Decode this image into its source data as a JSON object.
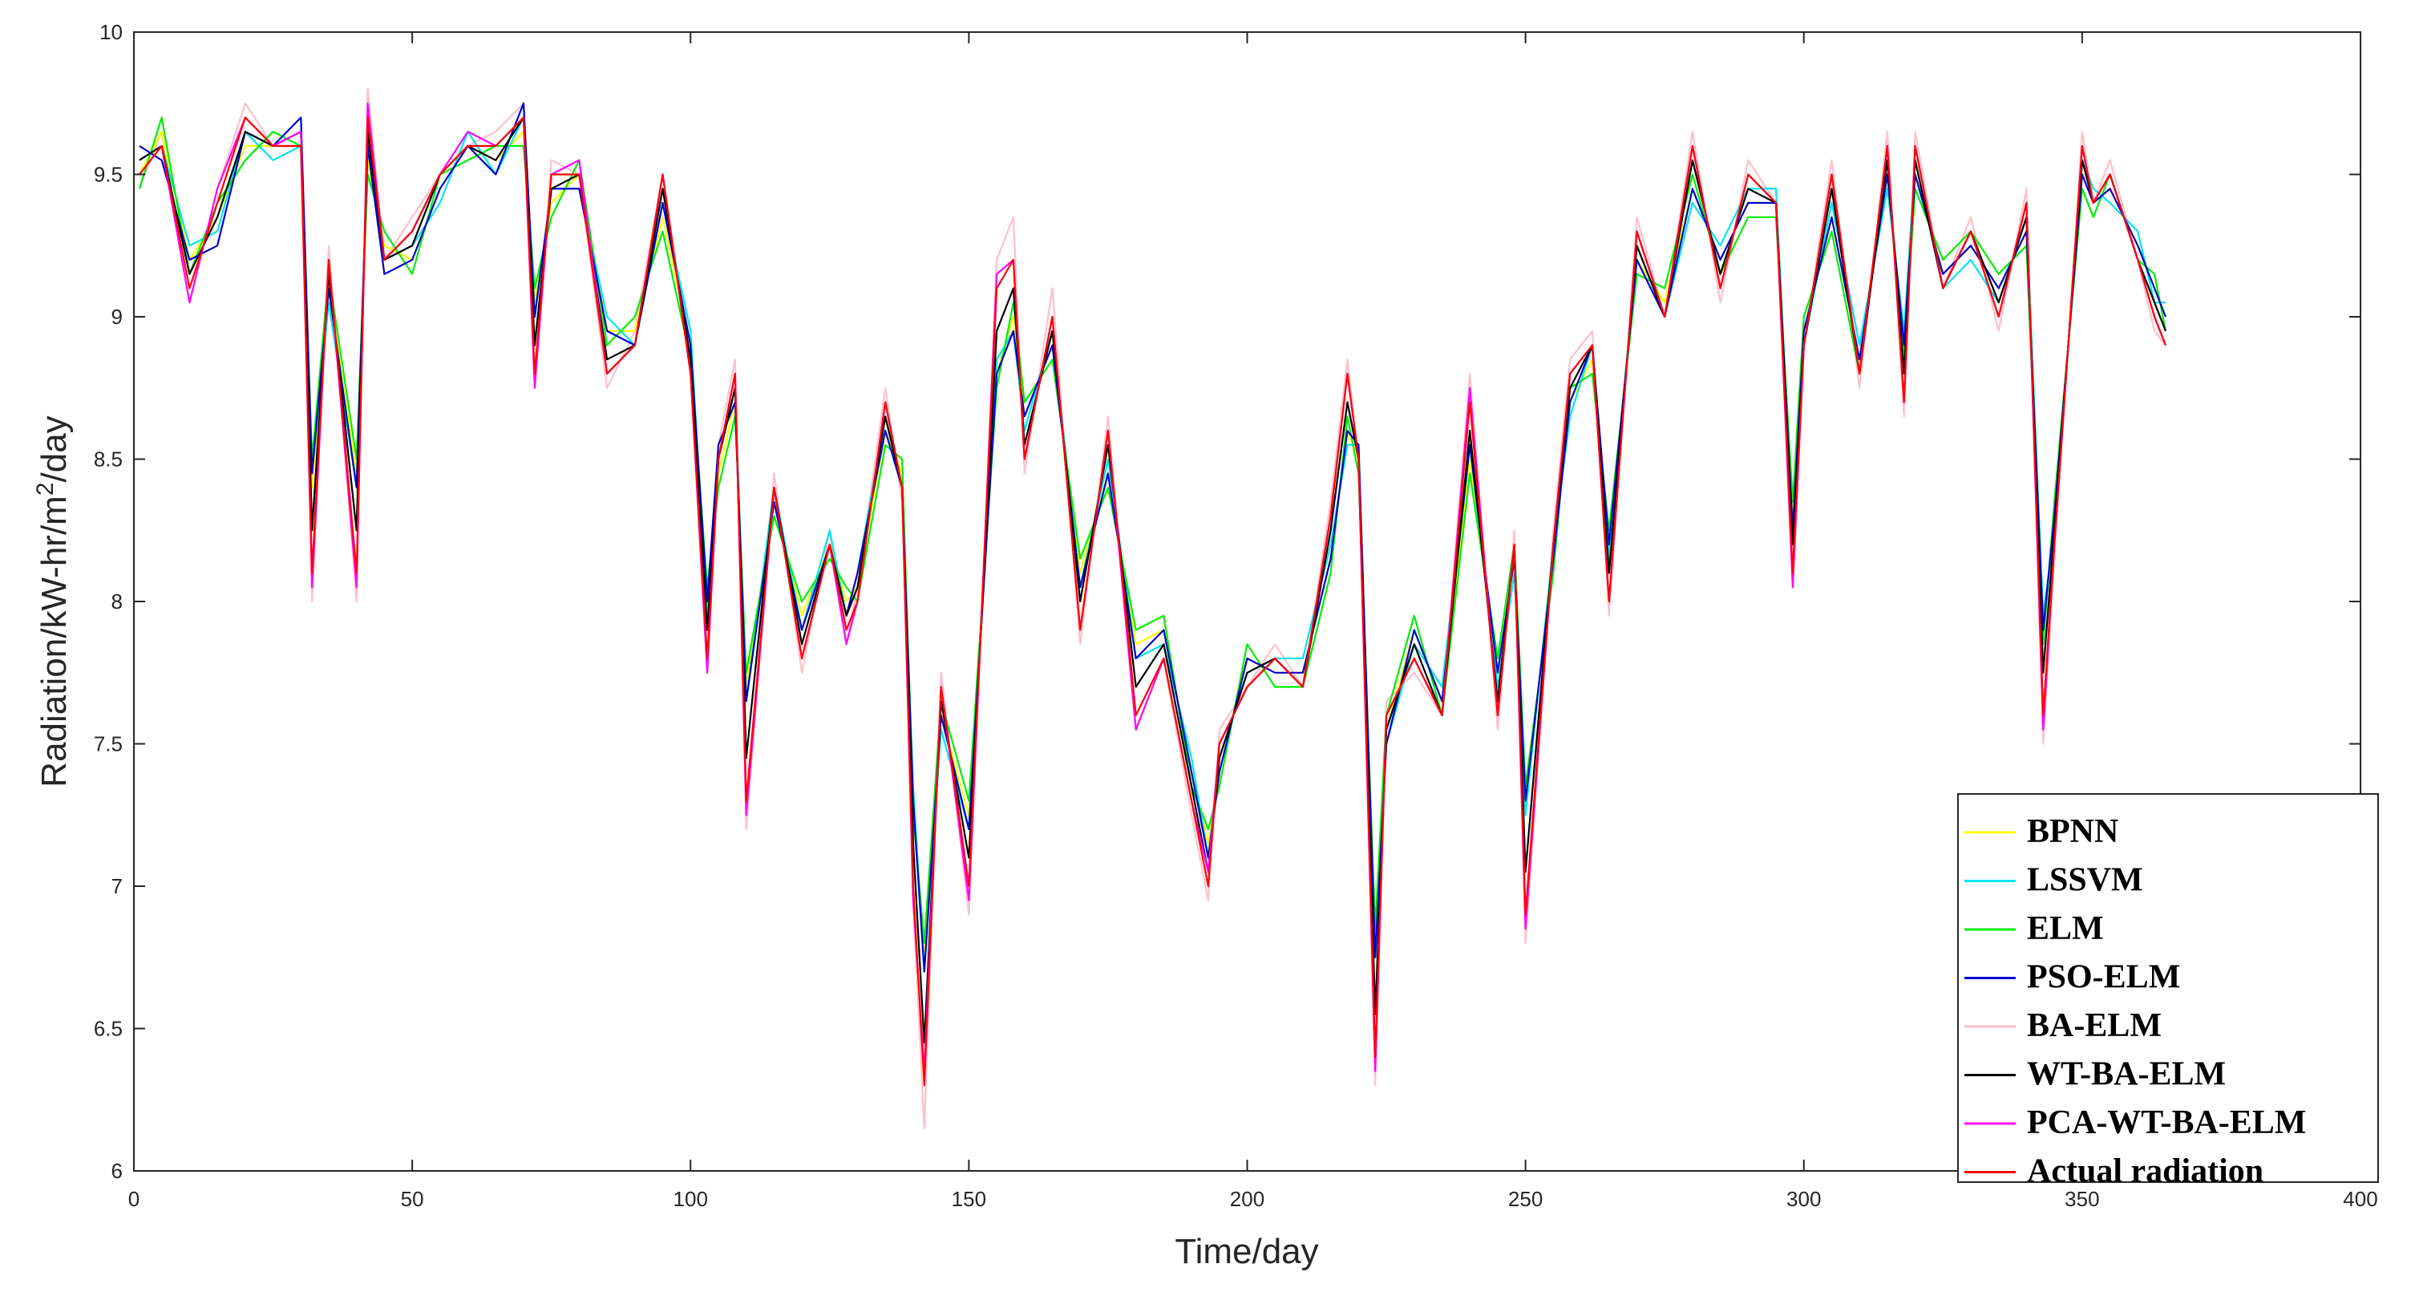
{
  "chart_data": {
    "type": "line",
    "xlabel": "Time/day",
    "ylabel_parts": [
      "Radiation/kW-hr/m",
      "2",
      "/day"
    ],
    "xlim": [
      0,
      400
    ],
    "ylim": [
      6,
      10
    ],
    "xticks": [
      0,
      50,
      100,
      150,
      200,
      250,
      300,
      350,
      400
    ],
    "yticks": [
      6,
      6.5,
      7,
      7.5,
      8,
      8.5,
      9,
      9.5,
      10
    ],
    "grid": false,
    "legend_position": "bottom-right",
    "x": [
      1,
      5,
      10,
      15,
      20,
      25,
      30,
      32,
      35,
      40,
      42,
      45,
      50,
      55,
      60,
      65,
      70,
      72,
      75,
      80,
      85,
      90,
      95,
      100,
      103,
      105,
      108,
      110,
      115,
      120,
      125,
      128,
      130,
      135,
      138,
      140,
      142,
      145,
      150,
      155,
      158,
      160,
      165,
      170,
      175,
      180,
      185,
      190,
      193,
      195,
      200,
      205,
      210,
      215,
      218,
      220,
      223,
      225,
      230,
      235,
      240,
      245,
      248,
      250,
      255,
      258,
      262,
      265,
      270,
      275,
      280,
      285,
      290,
      295,
      298,
      300,
      305,
      310,
      315,
      318,
      320,
      325,
      330,
      335,
      340,
      343,
      345,
      350,
      352,
      355,
      360,
      363,
      365
    ],
    "actual": [
      9.5,
      9.6,
      9.1,
      9.4,
      9.7,
      9.6,
      9.6,
      8.1,
      9.2,
      8.1,
      9.7,
      9.2,
      9.3,
      9.5,
      9.6,
      9.6,
      9.7,
      8.8,
      9.5,
      9.5,
      8.8,
      8.9,
      9.5,
      8.8,
      7.8,
      8.5,
      8.8,
      7.3,
      8.4,
      7.8,
      8.2,
      7.9,
      8.0,
      8.7,
      8.4,
      7.0,
      6.3,
      7.7,
      7.0,
      9.1,
      9.2,
      8.5,
      9.0,
      7.9,
      8.6,
      7.6,
      7.8,
      7.3,
      7.0,
      7.5,
      7.7,
      7.8,
      7.7,
      8.3,
      8.8,
      8.5,
      6.4,
      7.6,
      7.8,
      7.6,
      8.7,
      7.6,
      8.2,
      6.9,
      8.2,
      8.8,
      8.9,
      8.0,
      9.3,
      9.0,
      9.6,
      9.1,
      9.5,
      9.4,
      8.1,
      8.9,
      9.5,
      8.8,
      9.6,
      8.7,
      9.6,
      9.1,
      9.3,
      9.0,
      9.4,
      7.6,
      8.2,
      9.6,
      9.4,
      9.5,
      9.2,
      9.0,
      8.9
    ],
    "series": [
      {
        "name": "BPNN",
        "color": "#ffff00",
        "dev": [
          0.0,
          0.05,
          0.1,
          -0.05,
          -0.1,
          0.0,
          0.05,
          0.3,
          -0.1,
          0.35,
          -0.15,
          0.05,
          -0.1,
          -0.05,
          0.0,
          -0.05,
          -0.05,
          0.25,
          -0.1,
          0.0,
          0.15,
          0.05,
          -0.15,
          0.1,
          0.2,
          -0.05,
          -0.1,
          0.4,
          -0.05,
          0.15,
          0.0,
          0.1,
          0.05,
          -0.1,
          0.05,
          0.3,
          0.45,
          -0.1,
          0.25,
          -0.3,
          -0.2,
          0.15,
          -0.1,
          0.2,
          -0.15,
          0.25,
          0.1,
          0.1,
          0.15,
          -0.1,
          0.1,
          -0.05,
          0.05,
          -0.15,
          -0.2,
          0.0,
          0.4,
          -0.05,
          0.1,
          0.05,
          -0.2,
          0.15,
          -0.05,
          0.4,
          -0.05,
          -0.1,
          -0.05,
          0.2,
          -0.1,
          0.05,
          -0.15,
          0.1,
          -0.1,
          0.0,
          0.2,
          0.05,
          -0.15,
          0.05,
          -0.1,
          0.2,
          -0.1,
          0.05,
          -0.05,
          0.1,
          -0.1,
          0.3,
          0.1,
          -0.1,
          0.0,
          -0.05,
          0.05,
          0.1,
          0.1
        ]
      },
      {
        "name": "LSSVM",
        "color": "#00e5ee",
        "dev": [
          0.05,
          0.0,
          0.15,
          -0.1,
          -0.05,
          -0.05,
          0.0,
          0.35,
          -0.15,
          0.3,
          -0.1,
          0.0,
          -0.05,
          -0.1,
          0.05,
          -0.1,
          0.0,
          0.2,
          -0.05,
          -0.05,
          0.2,
          0.0,
          -0.1,
          0.15,
          0.15,
          0.0,
          -0.05,
          0.35,
          0.0,
          0.1,
          0.05,
          0.05,
          0.1,
          -0.05,
          0.0,
          0.35,
          0.4,
          -0.15,
          0.2,
          -0.25,
          -0.25,
          0.1,
          -0.05,
          0.15,
          -0.1,
          0.2,
          0.05,
          0.15,
          0.1,
          -0.05,
          0.05,
          0.0,
          0.1,
          -0.1,
          -0.25,
          0.05,
          0.35,
          -0.1,
          0.05,
          0.1,
          -0.15,
          0.1,
          -0.1,
          0.35,
          0.0,
          -0.15,
          0.0,
          0.15,
          -0.05,
          0.0,
          -0.2,
          0.15,
          -0.05,
          0.05,
          0.15,
          0.0,
          -0.1,
          0.1,
          -0.15,
          0.25,
          -0.05,
          0.0,
          -0.1,
          0.05,
          -0.05,
          0.35,
          0.05,
          -0.05,
          0.05,
          -0.1,
          0.1,
          0.05,
          0.15
        ]
      },
      {
        "name": "ELM",
        "color": "#00ee00",
        "dev": [
          -0.05,
          0.1,
          0.05,
          0.0,
          -0.15,
          0.05,
          0.0,
          0.4,
          -0.05,
          0.4,
          -0.2,
          0.1,
          -0.15,
          0.0,
          -0.05,
          0.0,
          -0.1,
          0.3,
          -0.15,
          0.05,
          0.1,
          0.1,
          -0.2,
          0.05,
          0.25,
          -0.1,
          -0.15,
          0.45,
          -0.1,
          0.2,
          -0.05,
          0.15,
          0.0,
          -0.15,
          0.1,
          0.25,
          0.5,
          -0.05,
          0.3,
          -0.35,
          -0.15,
          0.2,
          -0.15,
          0.25,
          -0.2,
          0.3,
          0.15,
          0.05,
          0.2,
          -0.15,
          0.15,
          -0.1,
          0.0,
          -0.2,
          -0.15,
          -0.05,
          0.45,
          0.0,
          0.15,
          0.0,
          -0.25,
          0.2,
          0.0,
          0.45,
          -0.1,
          -0.05,
          -0.1,
          0.25,
          -0.15,
          0.1,
          -0.1,
          0.05,
          -0.15,
          -0.05,
          0.25,
          0.1,
          -0.2,
          0.0,
          -0.05,
          0.15,
          -0.15,
          0.1,
          0.0,
          0.15,
          -0.15,
          0.25,
          0.15,
          -0.15,
          -0.05,
          0.0,
          0.0,
          0.15,
          0.05
        ]
      },
      {
        "name": "PSO-ELM",
        "color": "#0000cd",
        "dev": [
          0.1,
          -0.05,
          0.1,
          -0.15,
          -0.05,
          0.0,
          0.1,
          0.35,
          -0.1,
          0.3,
          -0.1,
          -0.05,
          -0.1,
          -0.05,
          0.0,
          -0.1,
          0.05,
          0.2,
          -0.05,
          -0.05,
          0.15,
          0.0,
          -0.1,
          0.1,
          0.2,
          0.05,
          -0.1,
          0.35,
          -0.05,
          0.1,
          0.0,
          0.05,
          0.1,
          -0.1,
          0.0,
          0.3,
          0.4,
          -0.1,
          0.2,
          -0.3,
          -0.25,
          0.15,
          -0.1,
          0.15,
          -0.15,
          0.2,
          0.1,
          0.1,
          0.1,
          -0.1,
          0.1,
          -0.05,
          0.05,
          -0.15,
          -0.2,
          0.05,
          0.35,
          -0.1,
          0.1,
          0.05,
          -0.15,
          0.15,
          -0.05,
          0.4,
          -0.05,
          -0.1,
          0.0,
          0.2,
          -0.1,
          0.0,
          -0.15,
          0.1,
          -0.1,
          0.0,
          0.15,
          0.05,
          -0.15,
          0.05,
          -0.1,
          0.2,
          -0.1,
          0.05,
          -0.05,
          0.1,
          -0.1,
          0.3,
          0.1,
          -0.1,
          0.0,
          -0.05,
          0.05,
          0.1,
          0.1
        ]
      },
      {
        "name": "BA-ELM",
        "color": "#ffc0cb",
        "dev": [
          -0.05,
          0.05,
          -0.05,
          0.05,
          0.05,
          0.0,
          0.0,
          -0.1,
          0.05,
          -0.1,
          0.1,
          0.0,
          0.05,
          0.0,
          0.0,
          0.05,
          0.05,
          -0.05,
          0.05,
          0.0,
          -0.05,
          0.05,
          0.0,
          0.05,
          -0.05,
          0.05,
          0.05,
          -0.1,
          0.05,
          -0.05,
          0.05,
          -0.05,
          0.05,
          0.05,
          -0.05,
          -0.05,
          -0.15,
          0.05,
          -0.1,
          0.1,
          0.15,
          -0.05,
          0.1,
          -0.05,
          0.05,
          -0.05,
          0.0,
          -0.05,
          -0.05,
          0.05,
          0.0,
          0.05,
          0.0,
          0.05,
          0.05,
          0.0,
          -0.1,
          0.05,
          -0.05,
          0.0,
          0.1,
          -0.05,
          0.05,
          -0.1,
          0.05,
          0.05,
          0.05,
          -0.05,
          0.05,
          0.0,
          0.05,
          -0.05,
          0.05,
          0.0,
          -0.05,
          0.0,
          0.05,
          -0.05,
          0.05,
          -0.05,
          0.05,
          0.0,
          0.05,
          -0.05,
          0.05,
          -0.1,
          -0.05,
          0.05,
          0.0,
          0.05,
          0.0,
          -0.05,
          0.0
        ]
      },
      {
        "name": "WT-BA-ELM",
        "color": "#000000",
        "dev": [
          0.05,
          0.0,
          0.05,
          -0.05,
          -0.05,
          0.0,
          0.05,
          0.15,
          -0.05,
          0.15,
          -0.05,
          0.0,
          -0.05,
          0.0,
          0.0,
          -0.05,
          0.0,
          0.1,
          -0.05,
          0.0,
          0.05,
          0.0,
          -0.05,
          0.05,
          0.1,
          0.0,
          -0.05,
          0.15,
          0.0,
          0.05,
          0.0,
          0.05,
          0.05,
          -0.05,
          0.0,
          0.15,
          0.15,
          -0.05,
          0.1,
          -0.15,
          -0.1,
          0.05,
          -0.05,
          0.1,
          -0.05,
          0.1,
          0.05,
          0.05,
          0.05,
          -0.05,
          0.05,
          0.0,
          0.0,
          -0.05,
          -0.1,
          0.0,
          0.15,
          -0.05,
          0.05,
          0.0,
          -0.1,
          0.05,
          0.0,
          0.15,
          0.0,
          -0.05,
          0.0,
          0.1,
          -0.05,
          0.0,
          -0.05,
          0.05,
          -0.05,
          0.0,
          0.1,
          0.0,
          -0.05,
          0.0,
          -0.05,
          0.1,
          -0.05,
          0.0,
          0.0,
          0.05,
          -0.05,
          0.15,
          0.05,
          -0.05,
          0.0,
          0.0,
          0.0,
          0.05,
          0.05
        ]
      },
      {
        "name": "PCA-WT-BA-ELM",
        "color": "#ff00ff",
        "dev": [
          0.0,
          0.0,
          -0.05,
          0.05,
          0.0,
          0.0,
          0.05,
          -0.05,
          0.0,
          -0.05,
          0.05,
          0.0,
          0.0,
          0.0,
          0.05,
          0.0,
          0.0,
          -0.05,
          0.0,
          0.05,
          0.0,
          0.0,
          0.0,
          0.0,
          -0.05,
          0.0,
          0.0,
          -0.05,
          0.0,
          0.0,
          0.0,
          -0.05,
          0.0,
          0.0,
          0.0,
          -0.05,
          0.05,
          0.0,
          -0.05,
          0.05,
          0.0,
          0.0,
          0.0,
          0.0,
          0.0,
          -0.05,
          0.0,
          0.0,
          0.05,
          0.0,
          0.0,
          0.0,
          0.0,
          0.0,
          0.0,
          0.0,
          -0.05,
          0.0,
          0.0,
          0.0,
          0.05,
          0.0,
          0.0,
          -0.05,
          0.0,
          0.0,
          0.0,
          0.0,
          0.0,
          0.0,
          0.0,
          0.0,
          0.0,
          0.0,
          -0.05,
          0.0,
          0.0,
          0.0,
          0.0,
          0.0,
          0.0,
          0.0,
          0.0,
          0.0,
          0.0,
          -0.05,
          0.0,
          0.0,
          0.0,
          0.0,
          0.0,
          0.0,
          0.0
        ]
      },
      {
        "name": "Actual radiation",
        "color": "#ff0000",
        "dev": null
      }
    ]
  }
}
